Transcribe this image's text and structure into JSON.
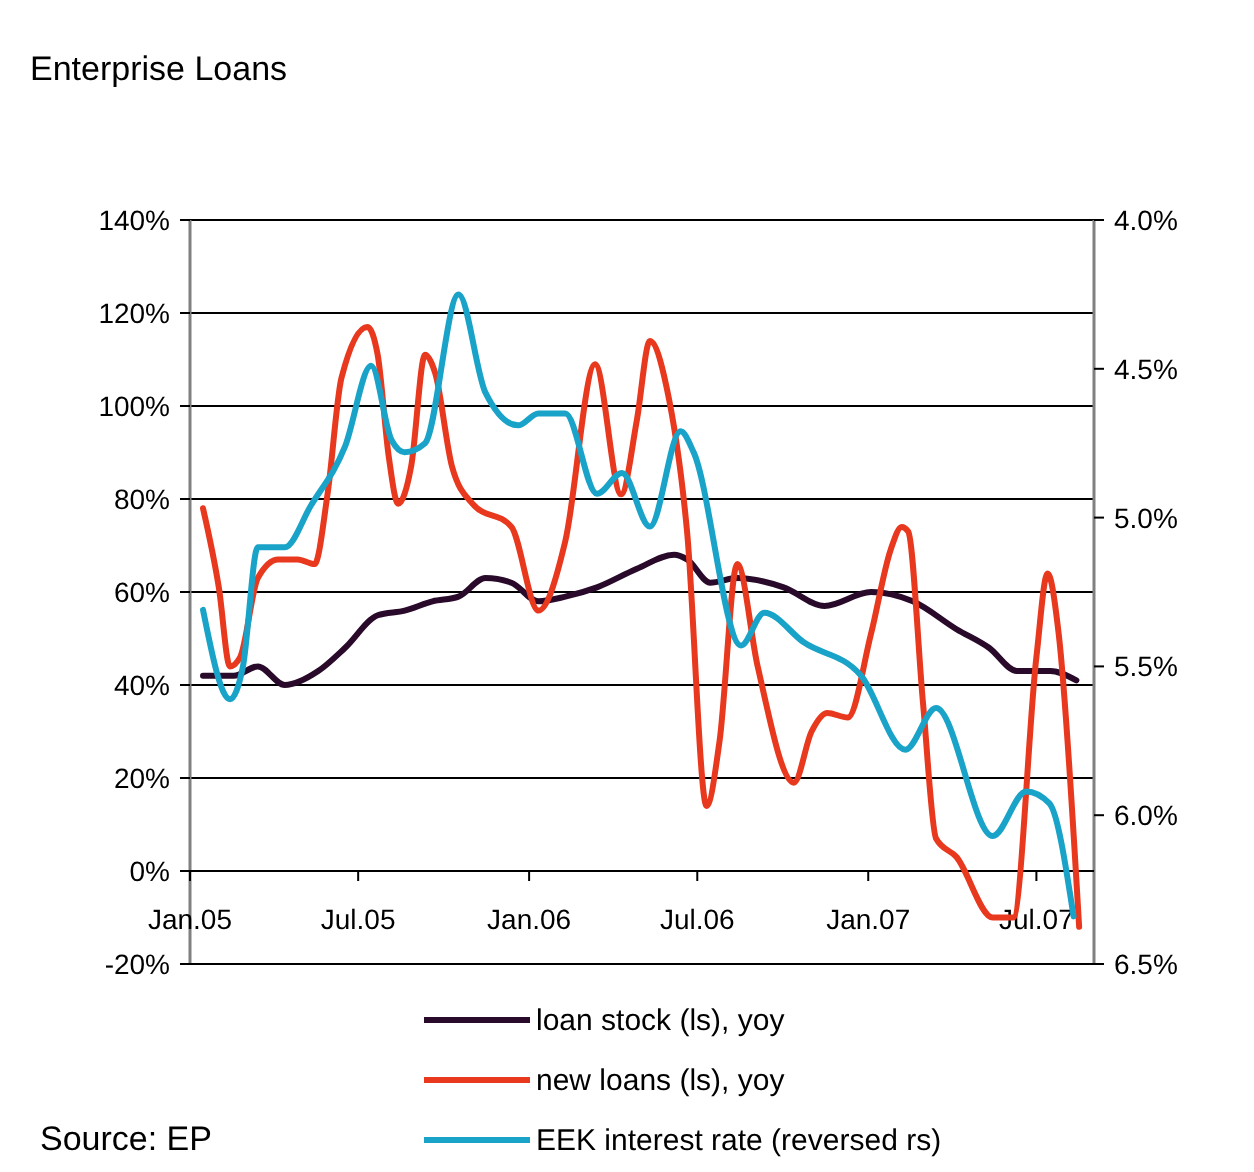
{
  "chart_data": {
    "type": "line",
    "title": "Enterprise Loans",
    "xlim": [
      "2005-01-01",
      "2007-09-01"
    ],
    "xticks": [
      {
        "value": "2005-01-01",
        "label": "Jan.05"
      },
      {
        "value": "2005-07-01",
        "label": "Jul.05"
      },
      {
        "value": "2006-01-01",
        "label": "Jan.06"
      },
      {
        "value": "2006-07-01",
        "label": "Jul.06"
      },
      {
        "value": "2007-01-01",
        "label": "Jan.07"
      },
      {
        "value": "2007-07-01",
        "label": "Jul.07"
      }
    ],
    "ylim": [
      -20,
      140
    ],
    "yticks": [
      {
        "value": -20,
        "label": "-20%"
      },
      {
        "value": 0,
        "label": "0%"
      },
      {
        "value": 20,
        "label": "20%"
      },
      {
        "value": 40,
        "label": "40%"
      },
      {
        "value": 60,
        "label": "60%"
      },
      {
        "value": 80,
        "label": "80%"
      },
      {
        "value": 100,
        "label": "100%"
      },
      {
        "value": 120,
        "label": "120%"
      },
      {
        "value": 140,
        "label": "140%"
      }
    ],
    "y2lim": [
      6.5,
      4.0
    ],
    "y2ticks": [
      {
        "value": 6.5,
        "label": "6.5%"
      },
      {
        "value": 6.0,
        "label": "6.0%"
      },
      {
        "value": 5.5,
        "label": "5.5%"
      },
      {
        "value": 5.0,
        "label": "5.0%"
      },
      {
        "value": 4.5,
        "label": "4.5%"
      },
      {
        "value": 4.0,
        "label": "4.0%"
      }
    ],
    "grid": "y",
    "legend": "bottom",
    "line_style": "solid",
    "annotations": [
      "Source: EP"
    ],
    "series": [
      {
        "name": "loan stock (ls), yoy",
        "color": "#2a0a2a",
        "x": [
          "2005-01-15",
          "2005-02-17",
          "2005-03-15",
          "2005-04-13",
          "2005-05-19",
          "2005-06-17",
          "2005-07-22",
          "2005-08-20",
          "2005-09-19",
          "2005-10-17",
          "2005-11-15",
          "2005-12-13",
          "2006-01-11",
          "2006-02-09",
          "2006-03-15",
          "2006-04-27",
          "2006-06-06",
          "2006-06-20",
          "2006-07-15",
          "2006-08-13",
          "2006-10-02",
          "2006-11-15",
          "2007-01-04",
          "2007-02-18",
          "2007-04-06",
          "2007-05-11",
          "2007-06-10",
          "2007-07-16",
          "2007-08-13"
        ],
        "values": [
          42,
          42,
          44,
          40,
          43,
          48,
          55,
          56,
          58,
          59,
          63,
          62,
          58,
          59,
          61,
          65,
          68,
          67,
          62,
          63,
          61,
          57,
          60,
          58,
          52,
          48,
          43,
          43,
          41
        ]
      },
      {
        "name": "new loans (ls), yoy",
        "color": "#e8381e",
        "x": [
          "2005-01-15",
          "2005-02-01",
          "2005-02-13",
          "2005-02-24",
          "2005-03-15",
          "2005-04-06",
          "2005-04-27",
          "2005-05-15",
          "2005-05-29",
          "2005-06-13",
          "2005-07-11",
          "2005-07-22",
          "2005-08-03",
          "2005-08-13",
          "2005-08-27",
          "2005-09-11",
          "2005-09-22",
          "2005-10-10",
          "2005-11-01",
          "2005-12-13",
          "2006-01-11",
          "2006-02-09",
          "2006-03-13",
          "2006-04-10",
          "2006-04-27",
          "2006-05-11",
          "2006-05-29",
          "2006-06-20",
          "2006-07-11",
          "2006-07-25",
          "2006-08-13",
          "2006-09-04",
          "2006-10-13",
          "2006-11-01",
          "2006-11-18",
          "2006-12-10",
          "2007-01-04",
          "2007-01-25",
          "2007-02-06",
          "2007-02-13",
          "2007-03-01",
          "2007-03-15",
          "2007-04-06",
          "2007-05-15",
          "2007-06-06",
          "2007-07-01",
          "2007-07-13",
          "2007-07-25",
          "2007-08-16"
        ],
        "values": [
          78,
          61,
          44,
          46,
          63,
          67,
          67,
          66,
          81,
          106,
          117,
          111,
          89,
          79,
          87,
          111,
          107,
          87,
          79,
          74,
          56,
          71,
          109,
          81,
          97,
          114,
          104,
          73,
          14,
          28,
          66,
          44,
          19,
          30,
          34,
          33,
          51,
          69,
          74,
          73,
          36,
          7,
          3,
          -10,
          -10,
          46,
          64,
          51,
          -12
        ]
      },
      {
        "name": "EEK interest rate (reversed rs)",
        "color": "#1aa3c8",
        "axis": "y2",
        "x": [
          "2005-01-15",
          "2005-02-13",
          "2005-02-27",
          "2005-03-15",
          "2005-04-13",
          "2005-05-11",
          "2005-06-17",
          "2005-07-15",
          "2005-08-06",
          "2005-08-20",
          "2005-09-11",
          "2005-10-17",
          "2005-11-15",
          "2005-12-20",
          "2006-01-11",
          "2006-02-09",
          "2006-03-15",
          "2006-04-11",
          "2006-05-11",
          "2006-06-13",
          "2006-06-27",
          "2006-08-17",
          "2006-09-11",
          "2006-10-24",
          "2006-12-24",
          "2007-02-10",
          "2007-03-15",
          "2007-05-15",
          "2007-06-20",
          "2007-07-15",
          "2007-08-10"
        ],
        "values": [
          5.31,
          5.61,
          5.5,
          5.1,
          5.1,
          4.96,
          4.76,
          4.49,
          4.74,
          4.78,
          4.75,
          4.25,
          4.58,
          4.69,
          4.65,
          4.65,
          4.92,
          4.85,
          5.03,
          4.71,
          4.78,
          5.43,
          5.32,
          5.42,
          5.53,
          5.78,
          5.64,
          6.07,
          5.92,
          5.96,
          6.34
        ]
      }
    ]
  }
}
